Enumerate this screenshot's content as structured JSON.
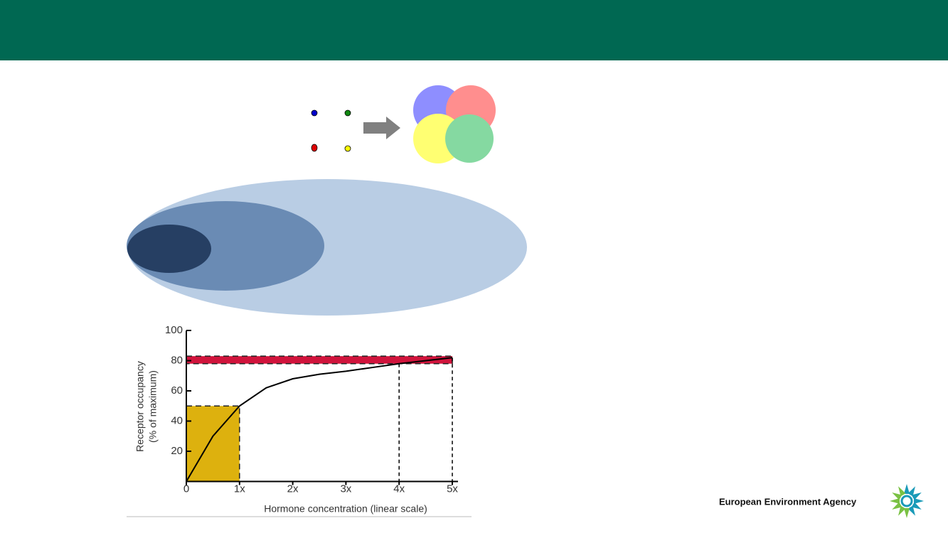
{
  "footer": {
    "organization": "European Environment Agency"
  },
  "chart_data": {
    "type": "line",
    "xlabel": "Hormone concentration (linear scale)",
    "ylabel": [
      "Receptor occupancy",
      "(% of maximum)"
    ],
    "x": [
      0,
      0.5,
      1,
      1.5,
      2,
      2.5,
      3,
      3.5,
      4,
      4.5,
      5
    ],
    "values": [
      0,
      30,
      50,
      62,
      68,
      71,
      73,
      75.5,
      78,
      80,
      82
    ],
    "color": "#000000",
    "xlim": [
      0,
      5
    ],
    "xticks": [
      0,
      {
        "value": 1,
        "label": "1x"
      },
      {
        "value": 2,
        "label": "2x"
      },
      {
        "value": 3,
        "label": "3x"
      },
      {
        "value": 4,
        "label": "4x"
      },
      {
        "value": 5,
        "label": "5x"
      }
    ],
    "ylim": [
      0,
      100
    ],
    "yticks": [
      20,
      40,
      60,
      80,
      100
    ],
    "regions": [
      {
        "x": [
          0,
          1
        ],
        "y": [
          0,
          50
        ],
        "color": "#ddb10e"
      },
      {
        "x": [
          0,
          5
        ],
        "y": [
          78,
          83
        ],
        "color": "#d0143c"
      }
    ],
    "guides": [
      {
        "x": 4,
        "y": 78
      },
      {
        "x": 5,
        "y": 82
      }
    ]
  }
}
